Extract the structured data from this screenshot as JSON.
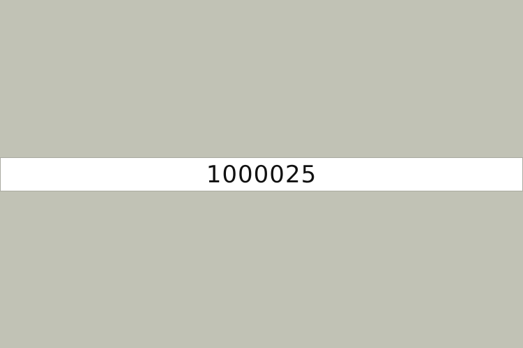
{
  "display": {
    "value": "1000025"
  },
  "colors": {
    "background": "#c1c2b5",
    "bar": "#ffffff",
    "text": "#111111"
  }
}
